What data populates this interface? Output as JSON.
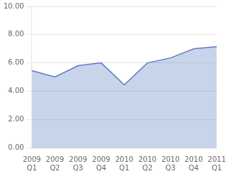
{
  "chart_data": {
    "type": "area",
    "categories": [
      "2009\nQ1",
      "2009\nQ2",
      "2009\nQ3",
      "2009\nQ4",
      "2010\nQ1",
      "2010\nQ2",
      "2010\nQ3",
      "2010\nQ4",
      "2011\nQ1"
    ],
    "values": [
      5.45,
      5.0,
      5.8,
      6.0,
      4.45,
      6.0,
      6.35,
      7.0,
      7.15
    ],
    "color": "#5b7dbf",
    "ylim": [
      0,
      10
    ],
    "yticks": [
      {
        "value": 0,
        "label": "0.00"
      },
      {
        "value": 2,
        "label": "2.00"
      },
      {
        "value": 4,
        "label": "4.00"
      },
      {
        "value": 6,
        "label": "6.00"
      },
      {
        "value": 8,
        "label": "8.00"
      },
      {
        "value": 10,
        "label": "10.00"
      }
    ],
    "grid": "y"
  }
}
